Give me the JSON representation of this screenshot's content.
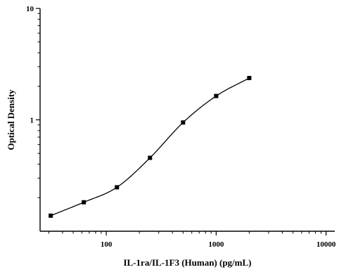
{
  "chart_data": {
    "type": "scatter",
    "title": "",
    "xlabel": "IL-1ra/IL-1F3 (Human) (pg/mL)",
    "ylabel": "Optical Density",
    "x_scale": "log",
    "y_scale": "log",
    "xlim": [
      25,
      12000
    ],
    "ylim": [
      0.1,
      10
    ],
    "x_ticks": [
      100,
      1000,
      10000
    ],
    "x_tick_labels": [
      "100",
      "1000",
      "10000"
    ],
    "y_ticks": [
      1,
      10
    ],
    "y_tick_labels": [
      "1",
      "10"
    ],
    "grid": false,
    "legend": "none",
    "series": [
      {
        "x": [
          31.25,
          62.5,
          125,
          250,
          500,
          1000,
          2000
        ],
        "y": [
          0.138,
          0.182,
          0.248,
          0.456,
          0.947,
          1.637,
          2.373
        ]
      }
    ],
    "fit_curve": {
      "type": "4PL",
      "x_range": [
        31.25,
        2000
      ]
    },
    "colors": {
      "marker": "#000000",
      "curve": "#000000",
      "axis": "#000000"
    }
  }
}
